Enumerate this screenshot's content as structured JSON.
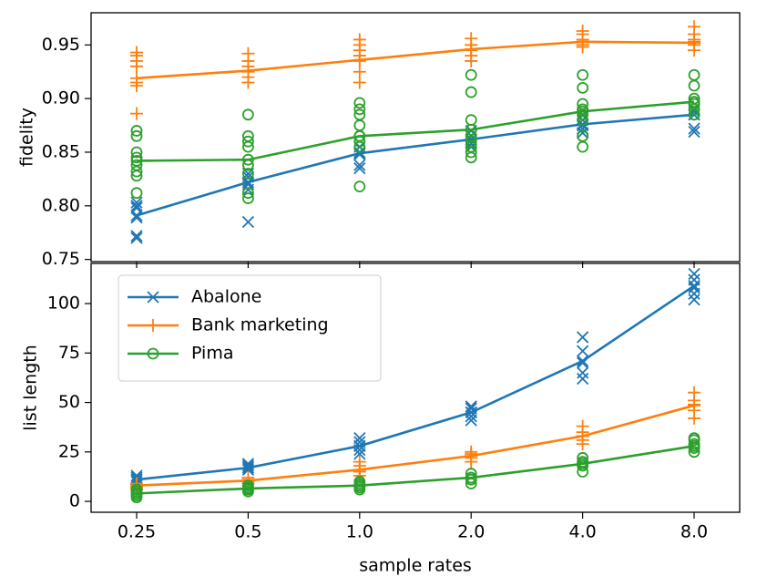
{
  "chart_data": [
    {
      "type": "line",
      "y_label": "fidelity",
      "ylim": [
        0.748,
        0.98
      ],
      "yticks": [
        0.75,
        {
          "value": 0.8,
          "label": "0.80"
        },
        0.85,
        {
          "value": 0.9,
          "label": "0.90"
        },
        0.95
      ],
      "series": [
        {
          "name": "Abalone",
          "color": "#1f77b4",
          "marker": "x",
          "values": [
            0.791,
            0.822,
            0.849,
            0.862,
            0.876,
            0.885
          ],
          "samples": [
            [
              0.772,
              0.77,
              0.789,
              0.8,
              0.803,
              0.798
            ],
            [
              0.785,
              0.82,
              0.827,
              0.83,
              0.815
            ],
            [
              0.835,
              0.838,
              0.85,
              0.855,
              0.848
            ],
            [
              0.855,
              0.862,
              0.865,
              0.87,
              0.858
            ],
            [
              0.868,
              0.875,
              0.88,
              0.885,
              0.872
            ],
            [
              0.869,
              0.872,
              0.885,
              0.89,
              0.888
            ]
          ]
        },
        {
          "name": "Bank marketing",
          "color": "#ff7f0e",
          "marker": "+",
          "values": [
            0.919,
            0.926,
            0.936,
            0.946,
            0.953,
            0.952
          ],
          "samples": [
            [
              0.886,
              0.912,
              0.915,
              0.93,
              0.935,
              0.94,
              0.943
            ],
            [
              0.915,
              0.92,
              0.925,
              0.93,
              0.935,
              0.942
            ],
            [
              0.915,
              0.925,
              0.935,
              0.94,
              0.945,
              0.95,
              0.955
            ],
            [
              0.935,
              0.94,
              0.945,
              0.95,
              0.956
            ],
            [
              0.948,
              0.95,
              0.953,
              0.955,
              0.96,
              0.963
            ],
            [
              0.945,
              0.95,
              0.953,
              0.955,
              0.96,
              0.967
            ]
          ]
        },
        {
          "name": "Pima",
          "color": "#2ca02c",
          "marker": "o",
          "values": [
            0.842,
            0.843,
            0.865,
            0.871,
            0.888,
            0.897
          ],
          "samples": [
            [
              0.812,
              0.828,
              0.832,
              0.838,
              0.845,
              0.85,
              0.865,
              0.87
            ],
            [
              0.807,
              0.812,
              0.83,
              0.838,
              0.855,
              0.86,
              0.865,
              0.885
            ],
            [
              0.818,
              0.855,
              0.86,
              0.865,
              0.875,
              0.885,
              0.89,
              0.896
            ],
            [
              0.845,
              0.85,
              0.855,
              0.86,
              0.865,
              0.88,
              0.906,
              0.922
            ],
            [
              0.855,
              0.865,
              0.88,
              0.885,
              0.89,
              0.895,
              0.91,
              0.922
            ],
            [
              0.885,
              0.89,
              0.895,
              0.9,
              0.912,
              0.922
            ]
          ]
        }
      ]
    },
    {
      "type": "line",
      "y_label": "list length",
      "x_label": "sample rates",
      "categories": [
        "0.25",
        "0.5",
        "1.0",
        "2.0",
        "4.0",
        "8.0"
      ],
      "ylim": [
        -5.5,
        120.3
      ],
      "yticks": [
        0,
        25,
        50,
        75,
        100
      ],
      "legend": "upper left",
      "series": [
        {
          "name": "Abalone",
          "color": "#1f77b4",
          "marker": "x",
          "values": [
            11,
            17,
            28,
            45,
            71,
            109
          ],
          "samples": [
            [
              10,
              11,
              12,
              13
            ],
            [
              16,
              17,
              18,
              19
            ],
            [
              24,
              26,
              28,
              30,
              32
            ],
            [
              41,
              43,
              45,
              47,
              48
            ],
            [
              62,
              65,
              70,
              76,
              83
            ],
            [
              102,
              105,
              108,
              112,
              115
            ]
          ]
        },
        {
          "name": "Bank marketing",
          "color": "#ff7f0e",
          "marker": "+",
          "values": [
            8,
            10.5,
            16,
            23,
            33,
            48.5
          ],
          "samples": [
            [
              6,
              7,
              8,
              9
            ],
            [
              9,
              10,
              11,
              12
            ],
            [
              13,
              15,
              16,
              18,
              20
            ],
            [
              20,
              22,
              24,
              25
            ],
            [
              29,
              31,
              33,
              35,
              38
            ],
            [
              42,
              46,
              49,
              51,
              55
            ]
          ]
        },
        {
          "name": "Pima",
          "color": "#2ca02c",
          "marker": "o",
          "values": [
            4,
            6.5,
            8,
            12,
            19,
            28
          ],
          "samples": [
            [
              2,
              3,
              4,
              5,
              6
            ],
            [
              5,
              6,
              7,
              8
            ],
            [
              6,
              7,
              8,
              9,
              10
            ],
            [
              9,
              11,
              12,
              14
            ],
            [
              15,
              18,
              20,
              22
            ],
            [
              25,
              27,
              29,
              31,
              32
            ]
          ]
        }
      ]
    }
  ]
}
